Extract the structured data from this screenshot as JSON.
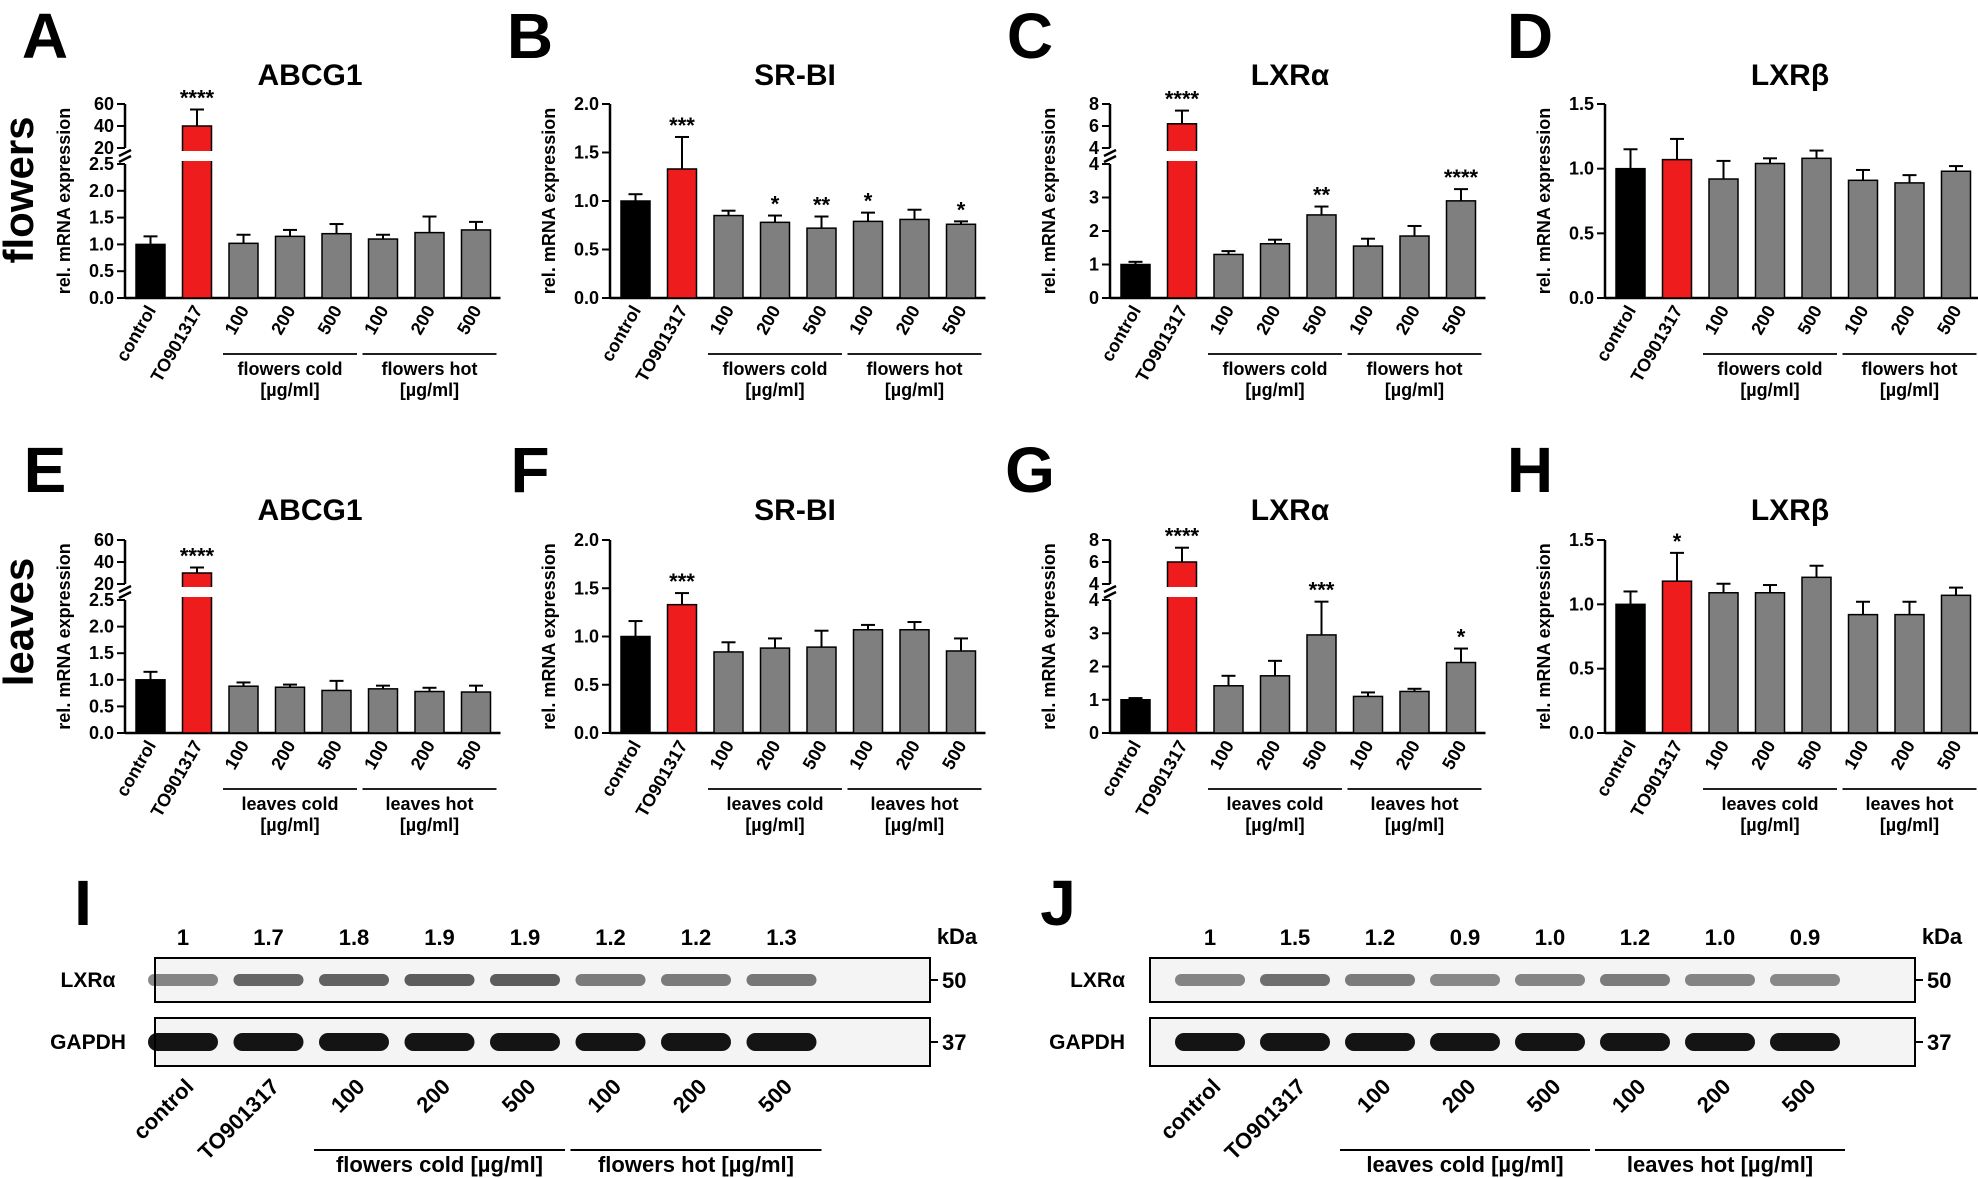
{
  "row_labels": [
    "flowers",
    "leaves"
  ],
  "common": {
    "ylabel": "rel. mRNA expression",
    "categories": [
      "control",
      "TO901317",
      "100",
      "200",
      "500",
      "100",
      "200",
      "500"
    ],
    "bar_colors": [
      "#000000",
      "#ee1c1c",
      "#7f7f7f",
      "#7f7f7f",
      "#7f7f7f",
      "#7f7f7f",
      "#7f7f7f",
      "#7f7f7f"
    ],
    "unit": "[µg/ml]"
  },
  "chart_data": [
    {
      "panel": "A",
      "type": "bar",
      "title": "ABCG1",
      "row": "flowers",
      "groups": [
        "flowers cold",
        "flowers hot"
      ],
      "values": [
        1.0,
        40,
        1.02,
        1.15,
        1.2,
        1.1,
        1.22,
        1.27
      ],
      "errors": [
        0.15,
        15,
        0.16,
        0.12,
        0.18,
        0.08,
        0.3,
        0.15
      ],
      "sig": [
        "",
        "****",
        "",
        "",
        "",
        "",
        "",
        ""
      ],
      "break": {
        "lower": [
          0,
          2.5
        ],
        "upper": [
          20,
          60
        ]
      },
      "yticks_lower": [
        "0.0",
        "0.5",
        "1.0",
        "1.5",
        "2.0",
        "2.5"
      ],
      "yticks_upper": [
        "20",
        "40",
        "60"
      ]
    },
    {
      "panel": "B",
      "type": "bar",
      "title": "SR-BI",
      "row": "flowers",
      "groups": [
        "flowers cold",
        "flowers hot"
      ],
      "values": [
        1.0,
        1.33,
        0.85,
        0.78,
        0.72,
        0.79,
        0.81,
        0.76
      ],
      "errors": [
        0.07,
        0.33,
        0.05,
        0.07,
        0.12,
        0.09,
        0.1,
        0.03
      ],
      "sig": [
        "",
        "***",
        "",
        "*",
        "**",
        "*",
        "",
        "*"
      ],
      "ylim": [
        0,
        2.0
      ],
      "yticks": [
        "0.0",
        "0.5",
        "1.0",
        "1.5",
        "2.0"
      ]
    },
    {
      "panel": "C",
      "type": "bar",
      "title": "LXRα",
      "row": "flowers",
      "groups": [
        "flowers cold",
        "flowers hot"
      ],
      "values": [
        1.0,
        6.2,
        1.3,
        1.62,
        2.48,
        1.55,
        1.85,
        2.9
      ],
      "errors": [
        0.08,
        1.2,
        0.1,
        0.12,
        0.25,
        0.22,
        0.3,
        0.35
      ],
      "sig": [
        "",
        "****",
        "",
        "",
        "**",
        "",
        "",
        "****"
      ],
      "break": {
        "lower": [
          0,
          4
        ],
        "upper": [
          4,
          8
        ]
      },
      "yticks_lower": [
        "0",
        "1",
        "2",
        "3",
        "4"
      ],
      "yticks_upper": [
        "4",
        "6",
        "8"
      ]
    },
    {
      "panel": "D",
      "type": "bar",
      "title": "LXRβ",
      "row": "flowers",
      "groups": [
        "flowers cold",
        "flowers hot"
      ],
      "values": [
        1.0,
        1.07,
        0.92,
        1.04,
        1.08,
        0.91,
        0.89,
        0.98
      ],
      "errors": [
        0.15,
        0.16,
        0.14,
        0.04,
        0.06,
        0.08,
        0.06,
        0.04
      ],
      "sig": [
        "",
        "",
        "",
        "",
        "",
        "",
        "",
        ""
      ],
      "ylim": [
        0,
        1.5
      ],
      "yticks": [
        "0.0",
        "0.5",
        "1.0",
        "1.5"
      ]
    },
    {
      "panel": "E",
      "type": "bar",
      "title": "ABCG1",
      "row": "leaves",
      "groups": [
        "leaves cold",
        "leaves hot"
      ],
      "values": [
        1.0,
        30,
        0.88,
        0.86,
        0.8,
        0.83,
        0.78,
        0.77
      ],
      "errors": [
        0.15,
        5,
        0.07,
        0.05,
        0.18,
        0.06,
        0.07,
        0.12
      ],
      "sig": [
        "",
        "****",
        "",
        "",
        "",
        "",
        "",
        ""
      ],
      "break": {
        "lower": [
          0,
          2.5
        ],
        "upper": [
          20,
          60
        ]
      },
      "yticks_lower": [
        "0.0",
        "0.5",
        "1.0",
        "1.5",
        "2.0",
        "2.5"
      ],
      "yticks_upper": [
        "20",
        "40",
        "60"
      ]
    },
    {
      "panel": "F",
      "type": "bar",
      "title": "SR-BI",
      "row": "leaves",
      "groups": [
        "leaves cold",
        "leaves hot"
      ],
      "values": [
        1.0,
        1.33,
        0.84,
        0.88,
        0.89,
        1.07,
        1.07,
        0.85
      ],
      "errors": [
        0.16,
        0.12,
        0.1,
        0.1,
        0.17,
        0.05,
        0.08,
        0.13
      ],
      "sig": [
        "",
        "***",
        "",
        "",
        "",
        "",
        "",
        ""
      ],
      "ylim": [
        0,
        2.0
      ],
      "yticks": [
        "0.0",
        "0.5",
        "1.0",
        "1.5",
        "2.0"
      ]
    },
    {
      "panel": "G",
      "type": "bar",
      "title": "LXRα",
      "row": "leaves",
      "groups": [
        "leaves cold",
        "leaves hot"
      ],
      "values": [
        1.0,
        6.0,
        1.42,
        1.72,
        2.95,
        1.1,
        1.25,
        2.12
      ],
      "errors": [
        0.05,
        1.3,
        0.3,
        0.45,
        1.0,
        0.12,
        0.08,
        0.42
      ],
      "sig": [
        "",
        "****",
        "",
        "",
        "***",
        "",
        "",
        "*"
      ],
      "break": {
        "lower": [
          0,
          4
        ],
        "upper": [
          4,
          8
        ]
      },
      "yticks_lower": [
        "0",
        "1",
        "2",
        "3",
        "4"
      ],
      "yticks_upper": [
        "4",
        "6",
        "8"
      ]
    },
    {
      "panel": "H",
      "type": "bar",
      "title": "LXRβ",
      "row": "leaves",
      "groups": [
        "leaves cold",
        "leaves hot"
      ],
      "values": [
        1.0,
        1.18,
        1.09,
        1.09,
        1.21,
        0.92,
        0.92,
        1.07
      ],
      "errors": [
        0.1,
        0.22,
        0.07,
        0.06,
        0.09,
        0.1,
        0.1,
        0.06
      ],
      "sig": [
        "",
        "*",
        "",
        "",
        "",
        "",
        "",
        ""
      ],
      "ylim": [
        0,
        1.5
      ],
      "yticks": [
        "0.0",
        "0.5",
        "1.0",
        "1.5"
      ]
    }
  ],
  "blots": [
    {
      "panel": "I",
      "quant": [
        "1",
        "1.7",
        "1.8",
        "1.9",
        "1.9",
        "1.2",
        "1.2",
        "1.3"
      ],
      "kda_label": "kDa",
      "rows": [
        {
          "label": "LXRα",
          "kda": "50"
        },
        {
          "label": "GAPDH",
          "kda": "37"
        }
      ],
      "lanes": [
        "control",
        "TO901317",
        "100",
        "200",
        "500",
        "100",
        "200",
        "500"
      ],
      "groups": [
        "flowers cold [µg/ml]",
        "flowers hot [µg/ml]"
      ]
    },
    {
      "panel": "J",
      "quant": [
        "1",
        "1.5",
        "1.2",
        "0.9",
        "1.0",
        "1.2",
        "1.0",
        "0.9"
      ],
      "kda_label": "kDa",
      "rows": [
        {
          "label": "LXRα",
          "kda": "50"
        },
        {
          "label": "GAPDH",
          "kda": "37"
        }
      ],
      "lanes": [
        "control",
        "TO901317",
        "100",
        "200",
        "500",
        "100",
        "200",
        "500"
      ],
      "groups": [
        "leaves cold [µg/ml]",
        "leaves hot [µg/ml]"
      ]
    }
  ]
}
